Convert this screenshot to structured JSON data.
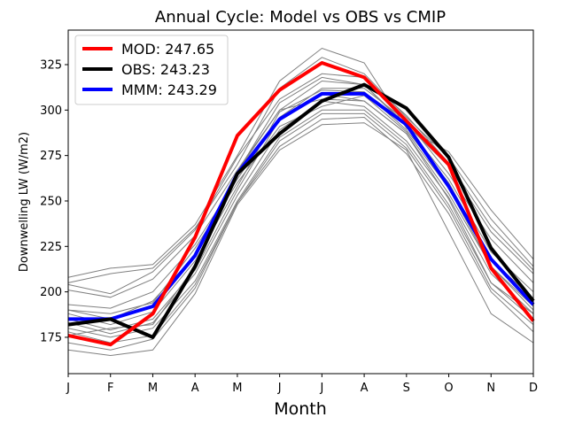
{
  "chart_data": {
    "type": "line",
    "title": "Annual Cycle: Model vs OBS vs CMIP",
    "xlabel": "Month",
    "ylabel": "Downwelling LW (W/m2)",
    "categories": [
      "J",
      "F",
      "M",
      "A",
      "M",
      "J",
      "J",
      "A",
      "S",
      "O",
      "N",
      "D"
    ],
    "ylim": [
      155,
      344
    ],
    "yticks": [
      175,
      200,
      225,
      250,
      275,
      300,
      325
    ],
    "legend_position": "top-left",
    "series": [
      {
        "name": "MOD",
        "label": "MOD: 247.65",
        "color": "#ff0000",
        "values": [
          176,
          171,
          188,
          230,
          286,
          311,
          326,
          318,
          294,
          270,
          213,
          184
        ]
      },
      {
        "name": "OBS",
        "label": "OBS: 243.23",
        "color": "#000000",
        "values": [
          182,
          185,
          175,
          214,
          265,
          287,
          305,
          314,
          301,
          274,
          224,
          195
        ]
      },
      {
        "name": "MMM",
        "label": "MMM: 243.29",
        "color": "#0000ff",
        "values": [
          185,
          185,
          192,
          220,
          265,
          295,
          309,
          309,
          292,
          258,
          218,
          193
        ]
      }
    ],
    "cmip_color": "#808080",
    "cmip_models": [
      [
        208,
        213,
        215,
        237,
        275,
        316,
        334,
        326,
        290,
        277,
        245,
        218
      ],
      [
        205,
        210,
        213,
        235,
        270,
        312,
        329,
        320,
        296,
        274,
        240,
        214
      ],
      [
        204,
        199,
        211,
        234,
        274,
        306,
        320,
        318,
        297,
        271,
        236,
        212
      ],
      [
        201,
        197,
        207,
        231,
        267,
        300,
        316,
        314,
        292,
        269,
        233,
        210
      ],
      [
        193,
        191,
        200,
        226,
        262,
        296,
        312,
        312,
        294,
        265,
        229,
        205
      ],
      [
        190,
        185,
        195,
        220,
        266,
        304,
        318,
        314,
        291,
        262,
        222,
        200
      ],
      [
        188,
        182,
        189,
        217,
        258,
        299,
        311,
        310,
        289,
        260,
        218,
        196
      ],
      [
        185,
        179,
        185,
        212,
        256,
        295,
        309,
        305,
        287,
        254,
        214,
        192
      ],
      [
        183,
        177,
        183,
        210,
        253,
        289,
        305,
        302,
        283,
        252,
        210,
        188
      ],
      [
        180,
        175,
        180,
        206,
        250,
        285,
        300,
        300,
        281,
        248,
        205,
        185
      ],
      [
        178,
        172,
        176,
        204,
        249,
        283,
        298,
        298,
        279,
        246,
        202,
        182
      ],
      [
        172,
        168,
        174,
        202,
        249,
        280,
        295,
        296,
        276,
        243,
        200,
        178
      ],
      [
        168,
        165,
        168,
        199,
        248,
        278,
        292,
        293,
        278,
        233,
        188,
        172
      ],
      [
        176,
        180,
        182,
        214,
        266,
        300,
        306,
        305,
        287,
        251,
        205,
        188
      ],
      [
        190,
        188,
        194,
        224,
        260,
        291,
        302,
        308,
        288,
        257,
        214,
        190
      ]
    ]
  }
}
